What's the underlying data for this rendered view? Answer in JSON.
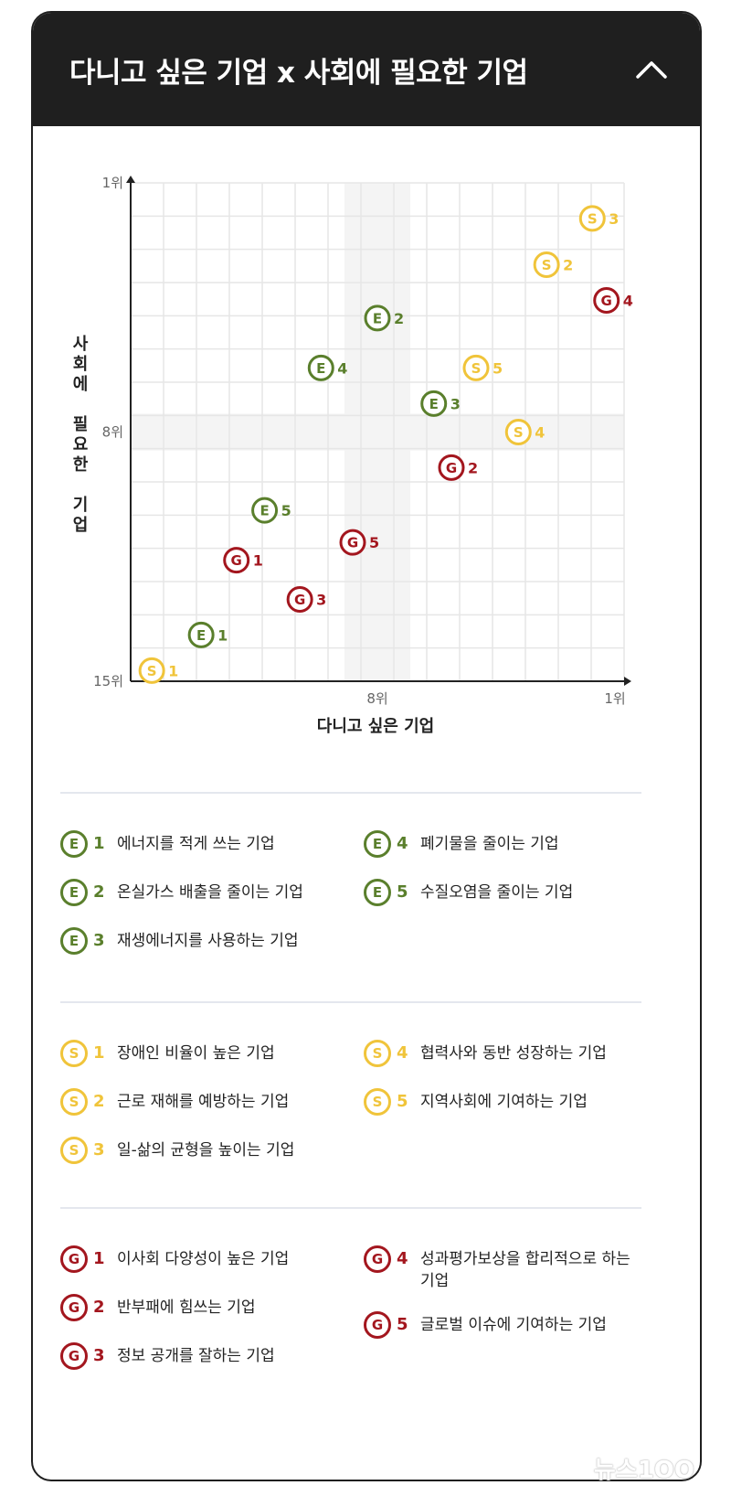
{
  "header": {
    "title": "다니고 싶은 기업 x 사회에 필요한 기업"
  },
  "colors": {
    "E": "#5a7f2c",
    "S": "#f0c43a",
    "G": "#a3161e",
    "header_bg": "#1f1f1f"
  },
  "icons": {
    "collapse": "chevron-up-icon"
  },
  "chart_data": {
    "type": "scatter",
    "xlabel": "다니고 싶은 기업",
    "ylabel": "사회에 필요한 기업",
    "x_tick_labels": [
      "8위",
      "1위"
    ],
    "y_tick_labels": [
      "1위",
      "8위",
      "15위"
    ],
    "x_ticks": [
      8,
      1
    ],
    "y_ticks": [
      1,
      8,
      15
    ],
    "xlim": [
      15,
      1
    ],
    "ylim": [
      15,
      1
    ],
    "grid": true,
    "series": [
      {
        "name": "E",
        "points": [
          {
            "label": "1",
            "x": 13,
            "y": 13.7
          },
          {
            "label": "2",
            "x": 8,
            "y": 4.8
          },
          {
            "label": "3",
            "x": 6.4,
            "y": 7.2
          },
          {
            "label": "4",
            "x": 9.6,
            "y": 6.2
          },
          {
            "label": "5",
            "x": 11.2,
            "y": 10.2
          }
        ]
      },
      {
        "name": "S",
        "points": [
          {
            "label": "1",
            "x": 14.4,
            "y": 14.7
          },
          {
            "label": "2",
            "x": 3.2,
            "y": 3.3
          },
          {
            "label": "3",
            "x": 1.9,
            "y": 2.0
          },
          {
            "label": "4",
            "x": 4.0,
            "y": 8.0
          },
          {
            "label": "5",
            "x": 5.2,
            "y": 6.2
          }
        ]
      },
      {
        "name": "G",
        "points": [
          {
            "label": "1",
            "x": 12.0,
            "y": 11.6
          },
          {
            "label": "2",
            "x": 5.9,
            "y": 9.0
          },
          {
            "label": "3",
            "x": 10.2,
            "y": 12.7
          },
          {
            "label": "4",
            "x": 1.5,
            "y": 4.3
          },
          {
            "label": "5",
            "x": 8.7,
            "y": 11.1
          }
        ]
      }
    ]
  },
  "legend": {
    "E": [
      {
        "num": "1",
        "text": "에너지를 적게 쓰는 기업"
      },
      {
        "num": "2",
        "text": "온실가스 배출을 줄이는 기업"
      },
      {
        "num": "3",
        "text": "재생에너지를 사용하는 기업"
      },
      {
        "num": "4",
        "text": "폐기물을 줄이는 기업"
      },
      {
        "num": "5",
        "text": "수질오염을 줄이는 기업"
      }
    ],
    "S": [
      {
        "num": "1",
        "text": "장애인 비율이 높은 기업"
      },
      {
        "num": "2",
        "text": "근로 재해를 예방하는 기업"
      },
      {
        "num": "3",
        "text": "일-삶의 균형을 높이는 기업"
      },
      {
        "num": "4",
        "text": "협력사와 동반 성장하는 기업"
      },
      {
        "num": "5",
        "text": "지역사회에 기여하는 기업"
      }
    ],
    "G": [
      {
        "num": "1",
        "text": "이사회 다양성이 높은 기업"
      },
      {
        "num": "2",
        "text": "반부패에 힘쓰는 기업"
      },
      {
        "num": "3",
        "text": "정보 공개를 잘하는 기업"
      },
      {
        "num": "4",
        "text": "성과평가보상을 합리적으로 하는 기업"
      },
      {
        "num": "5",
        "text": "글로벌 이슈에 기여하는 기업"
      }
    ]
  },
  "watermark": "뉴스1OO"
}
